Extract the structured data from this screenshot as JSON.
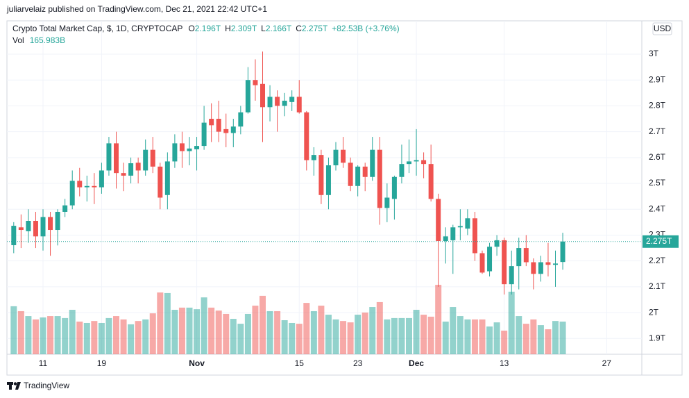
{
  "header": {
    "publisher": "juliarvelaiz published on TradingView.com, Dec 21, 2021 22:42 UTC+1",
    "brand": "TradingView"
  },
  "chart_data": {
    "type": "candlestick",
    "title": "Crypto Total Market Cap, $, 1D, CRYPTOCAP",
    "currency": "USD",
    "legend": {
      "o": "O",
      "open": "2.196T",
      "h": "H",
      "high": "2.309T",
      "l": "L",
      "low": "2.166T",
      "c": "C",
      "close": "2.275T",
      "change": "+82.53B (+3.76%)",
      "vol_name": "Vol",
      "vol": "165.983B"
    },
    "up_color": "#26a69a",
    "down_color": "#ef5350",
    "categories": [
      null,
      null,
      null,
      null,
      "11",
      null,
      null,
      null,
      null,
      null,
      null,
      null,
      "19",
      null,
      null,
      null,
      null,
      null,
      null,
      null,
      null,
      null,
      null,
      null,
      null,
      "Nov",
      null,
      null,
      null,
      null,
      null,
      null,
      null,
      null,
      null,
      null,
      null,
      null,
      null,
      "15",
      null,
      null,
      null,
      null,
      null,
      null,
      null,
      "23",
      null,
      null,
      null,
      null,
      null,
      null,
      null,
      "Dec",
      null,
      null,
      null,
      null,
      null,
      null,
      null,
      null,
      null,
      null,
      null,
      "13",
      null,
      null,
      null,
      null,
      null,
      null,
      null,
      null,
      null,
      null,
      null,
      null,
      null,
      "27",
      null,
      null,
      null
    ],
    "open": [
      2.261,
      2.33,
      2.315,
      2.355,
      2.295,
      2.37,
      2.32,
      2.39,
      2.415,
      2.51,
      2.485,
      2.49,
      2.485,
      2.55,
      2.655,
      2.54,
      2.53,
      2.58,
      2.55,
      2.63,
      2.565,
      2.455,
      2.585,
      2.655,
      2.625,
      2.632,
      2.645,
      2.75,
      2.75,
      2.71,
      2.695,
      2.72,
      2.775,
      2.9,
      2.885,
      2.795,
      2.835,
      2.8,
      2.815,
      2.835,
      2.775,
      2.59,
      2.61,
      2.455,
      2.57,
      2.63,
      2.58,
      2.49,
      2.565,
      2.525,
      2.63,
      2.405,
      2.44,
      2.525,
      2.575,
      2.585,
      2.59,
      2.575,
      2.44,
      2.277,
      2.28,
      2.33,
      2.325,
      2.365,
      2.23,
      2.16,
      2.255,
      2.28,
      2.11,
      2.18,
      2.25,
      2.195,
      2.15,
      2.195,
      2.185,
      2.196,
      null,
      null,
      null,
      null,
      null,
      null,
      null,
      null,
      null
    ],
    "high": [
      2.35,
      2.38,
      2.4,
      2.39,
      2.4,
      2.39,
      2.4,
      2.44,
      2.55,
      2.56,
      2.53,
      2.54,
      2.58,
      2.68,
      2.7,
      2.58,
      2.6,
      2.6,
      2.67,
      2.68,
      2.58,
      2.62,
      2.69,
      2.7,
      2.68,
      2.68,
      2.8,
      2.81,
      2.82,
      2.77,
      2.75,
      2.8,
      2.95,
      2.98,
      3.01,
      2.88,
      2.86,
      2.85,
      2.86,
      2.9,
      2.78,
      2.64,
      2.63,
      2.6,
      2.66,
      2.68,
      2.6,
      2.57,
      2.58,
      2.68,
      2.68,
      2.5,
      2.53,
      2.65,
      2.67,
      2.71,
      2.62,
      2.65,
      2.46,
      2.33,
      2.34,
      2.4,
      2.4,
      2.39,
      2.24,
      2.27,
      2.3,
      2.29,
      2.24,
      2.29,
      2.3,
      2.21,
      2.22,
      2.27,
      2.24,
      2.309,
      null,
      null,
      null,
      null,
      null,
      null,
      null,
      null,
      null
    ],
    "low": [
      2.23,
      2.25,
      2.27,
      2.25,
      2.24,
      2.22,
      2.26,
      2.37,
      2.4,
      2.45,
      2.43,
      2.42,
      2.46,
      2.53,
      2.48,
      2.47,
      2.5,
      2.5,
      2.53,
      2.54,
      2.4,
      2.4,
      2.56,
      2.56,
      2.57,
      2.55,
      2.63,
      2.66,
      2.66,
      2.64,
      2.64,
      2.69,
      2.77,
      2.82,
      2.66,
      2.74,
      2.7,
      2.76,
      2.78,
      2.77,
      2.55,
      2.53,
      2.42,
      2.4,
      2.55,
      2.56,
      2.47,
      2.45,
      2.47,
      2.51,
      2.34,
      2.35,
      2.36,
      2.5,
      2.54,
      2.53,
      2.52,
      2.43,
      2.1,
      2.19,
      2.15,
      2.28,
      2.3,
      2.2,
      2.15,
      2.14,
      2.22,
      2.07,
      2.07,
      2.09,
      2.18,
      2.09,
      2.12,
      2.14,
      2.1,
      2.166,
      null,
      null,
      null,
      null,
      null,
      null,
      null,
      null,
      null
    ],
    "close": [
      2.336,
      2.32,
      2.355,
      2.295,
      2.37,
      2.32,
      2.39,
      2.415,
      2.51,
      2.485,
      2.49,
      2.485,
      2.55,
      2.655,
      2.54,
      2.53,
      2.578,
      2.55,
      2.63,
      2.565,
      2.445,
      2.585,
      2.655,
      2.625,
      2.635,
      2.645,
      2.735,
      2.725,
      2.7,
      2.695,
      2.72,
      2.775,
      2.9,
      2.88,
      2.795,
      2.835,
      2.8,
      2.82,
      2.835,
      2.775,
      2.59,
      2.61,
      2.455,
      2.57,
      2.63,
      2.58,
      2.49,
      2.565,
      2.525,
      2.63,
      2.405,
      2.445,
      2.525,
      2.575,
      2.585,
      2.59,
      2.575,
      2.44,
      2.277,
      2.295,
      2.33,
      2.335,
      2.365,
      2.23,
      2.155,
      2.255,
      2.28,
      2.11,
      2.18,
      2.25,
      2.195,
      2.15,
      2.195,
      2.185,
      2.19,
      2.275,
      null,
      null,
      null,
      null,
      null,
      null,
      null,
      null,
      null
    ],
    "volume": [
      244,
      219,
      194,
      177,
      187,
      194,
      194,
      184,
      226,
      166,
      159,
      169,
      159,
      184,
      194,
      177,
      152,
      169,
      177,
      208,
      314,
      311,
      226,
      237,
      237,
      229,
      289,
      237,
      222,
      205,
      180,
      155,
      205,
      247,
      297,
      219,
      219,
      173,
      159,
      155,
      261,
      219,
      247,
      201,
      177,
      169,
      162,
      201,
      212,
      240,
      265,
      177,
      184,
      184,
      184,
      226,
      201,
      191,
      353,
      166,
      240,
      194,
      177,
      177,
      177,
      141,
      162,
      120,
      318,
      194,
      155,
      177,
      148,
      127,
      169,
      165.983,
      null,
      null,
      null,
      null,
      null,
      null,
      null,
      null,
      null
    ],
    "volume_lim": [
      0,
      1695
    ],
    "ylim": [
      1.839,
      3.129
    ],
    "yticks": [
      {
        "value": 1.9,
        "label": "1.9T"
      },
      {
        "value": 2,
        "label": "2T"
      },
      {
        "value": 2.1,
        "label": "2.1T"
      },
      {
        "value": 2.2,
        "label": "2.2T"
      },
      {
        "value": 2.3,
        "label": "2.3T"
      },
      {
        "value": 2.4,
        "label": "2.4T"
      },
      {
        "value": 2.5,
        "label": "2.5T"
      },
      {
        "value": 2.6,
        "label": "2.6T"
      },
      {
        "value": 2.7,
        "label": "2.7T"
      },
      {
        "value": 2.8,
        "label": "2.8T"
      },
      {
        "value": 2.9,
        "label": "2.9T"
      },
      {
        "value": 3,
        "label": "3T"
      }
    ],
    "grid": true
  }
}
